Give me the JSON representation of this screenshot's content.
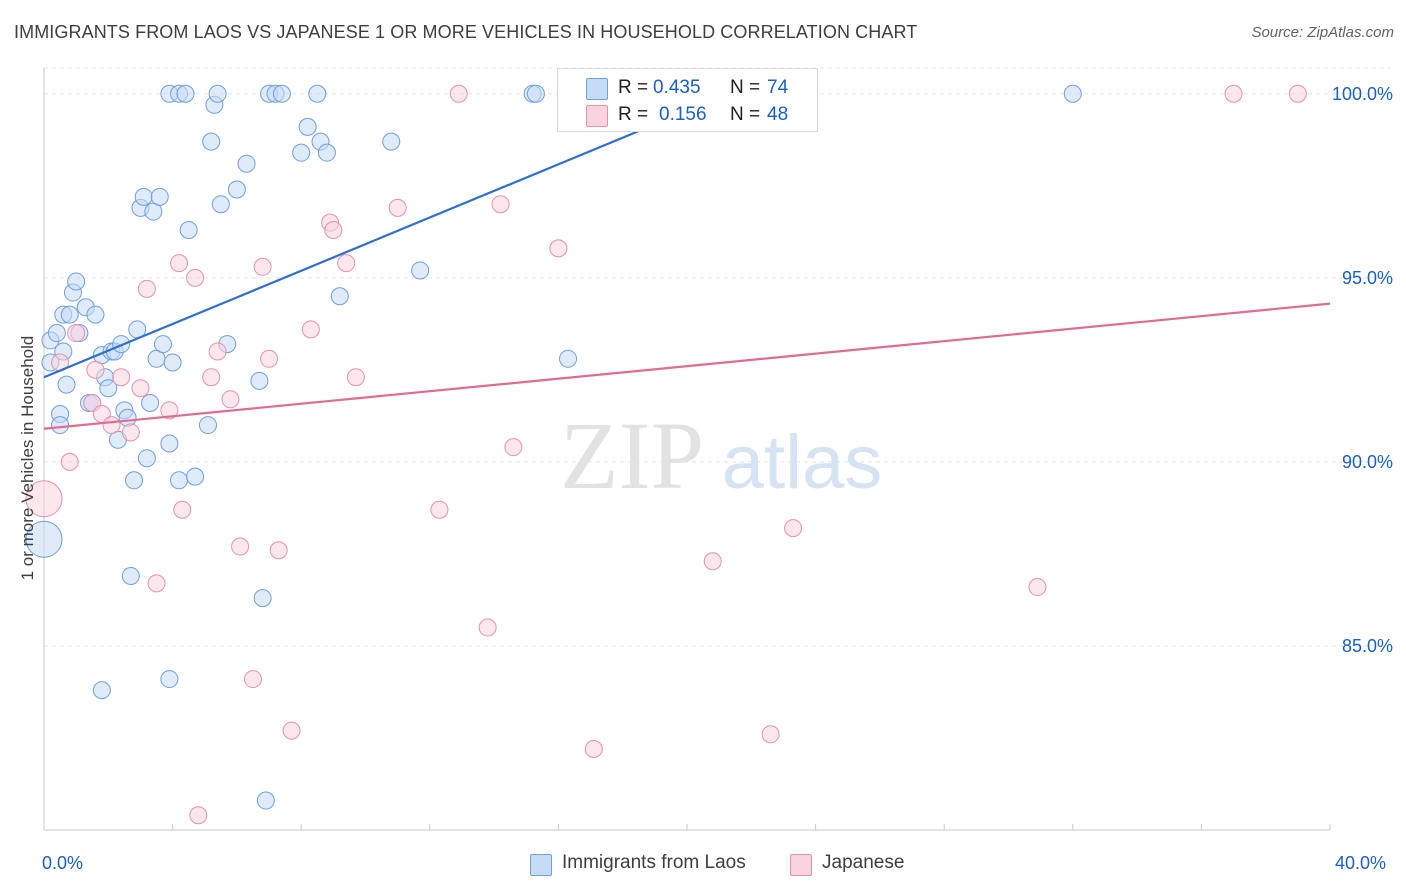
{
  "header": {
    "title": "IMMIGRANTS FROM LAOS VS JAPANESE 1 OR MORE VEHICLES IN HOUSEHOLD CORRELATION CHART",
    "source": "Source: ZipAtlas.com"
  },
  "watermark": {
    "zip": "ZIP",
    "atlas": "atlas"
  },
  "legend": {
    "r_label": "R =",
    "n_label": "N =",
    "series": [
      {
        "r": "0.435",
        "n": "74",
        "color": "#a8c8f0",
        "border": "#6fa0dc"
      },
      {
        "r": "0.156",
        "n": "48",
        "color": "#f7bfd0",
        "border": "#e691ad"
      }
    ]
  },
  "bottom_legend": [
    {
      "label": "Immigrants from Laos",
      "color": "#c6dbf6",
      "border": "#6fa0dc"
    },
    {
      "label": "Japanese",
      "color": "#f9d3df",
      "border": "#e691ad"
    }
  ],
  "chart_data": {
    "type": "scatter",
    "title": "IMMIGRANTS FROM LAOS VS JAPANESE 1 OR MORE VEHICLES IN HOUSEHOLD CORRELATION CHART",
    "xlabel": "",
    "ylabel": "1 or more Vehicles in Household",
    "xlim": [
      0,
      40
    ],
    "ylim": [
      80.0,
      100.7
    ],
    "x_tick_labels": [
      "0.0%",
      "40.0%"
    ],
    "y_ticks": [
      85,
      90,
      95,
      100
    ],
    "y_tick_labels": [
      "85.0%",
      "90.0%",
      "95.0%",
      "100.0%"
    ],
    "grid": true,
    "legend_position": "top-center",
    "series": [
      {
        "name": "Immigrants from Laos",
        "color": "#6fa0dc",
        "fill": "#c6dbf6",
        "line_color": "#2e6fd1",
        "trend": [
          [
            0,
            92.3
          ],
          [
            21.3,
            100.0
          ]
        ],
        "points": [
          [
            0.0,
            87.9,
            "big"
          ],
          [
            0.2,
            92.7
          ],
          [
            0.2,
            93.3
          ],
          [
            0.4,
            93.5
          ],
          [
            0.5,
            91.3
          ],
          [
            0.5,
            91.0
          ],
          [
            0.6,
            93.0
          ],
          [
            0.6,
            94.0
          ],
          [
            0.7,
            92.1
          ],
          [
            0.8,
            94.0
          ],
          [
            0.9,
            94.6
          ],
          [
            1.0,
            94.9
          ],
          [
            1.1,
            93.5
          ],
          [
            1.3,
            94.2
          ],
          [
            1.4,
            91.6
          ],
          [
            1.5,
            91.6
          ],
          [
            1.6,
            94.0
          ],
          [
            1.8,
            92.9
          ],
          [
            1.9,
            92.3
          ],
          [
            2.0,
            92.0
          ],
          [
            2.1,
            93.0
          ],
          [
            2.2,
            93.0
          ],
          [
            2.3,
            90.6
          ],
          [
            2.4,
            93.2
          ],
          [
            2.5,
            91.4
          ],
          [
            2.6,
            91.2
          ],
          [
            2.7,
            86.9
          ],
          [
            2.8,
            89.5
          ],
          [
            2.9,
            93.6
          ],
          [
            3.0,
            96.9
          ],
          [
            3.1,
            97.2
          ],
          [
            3.2,
            90.1
          ],
          [
            3.3,
            91.6
          ],
          [
            3.4,
            96.8
          ],
          [
            3.5,
            92.8
          ],
          [
            3.6,
            97.2
          ],
          [
            3.7,
            93.2
          ],
          [
            3.9,
            90.5
          ],
          [
            4.0,
            92.7
          ],
          [
            4.2,
            89.5
          ],
          [
            4.5,
            96.3
          ],
          [
            4.7,
            89.6
          ],
          [
            5.1,
            91.0
          ],
          [
            5.2,
            98.7
          ],
          [
            5.3,
            99.7
          ],
          [
            5.5,
            97.0
          ],
          [
            5.7,
            93.2
          ],
          [
            6.0,
            97.4
          ],
          [
            6.3,
            98.1
          ],
          [
            6.8,
            86.3
          ],
          [
            6.9,
            80.8
          ],
          [
            6.7,
            92.2
          ],
          [
            3.9,
            84.1
          ],
          [
            1.8,
            83.8
          ],
          [
            3.9,
            100.0
          ],
          [
            4.2,
            100.0
          ],
          [
            4.4,
            100.0
          ],
          [
            5.4,
            100.0
          ],
          [
            7.0,
            100.0
          ],
          [
            7.2,
            100.0
          ],
          [
            7.4,
            100.0
          ],
          [
            8.0,
            98.4
          ],
          [
            8.2,
            99.1
          ],
          [
            8.6,
            98.7
          ],
          [
            8.8,
            98.4
          ],
          [
            8.5,
            100.0
          ],
          [
            9.2,
            94.5
          ],
          [
            10.8,
            98.7
          ],
          [
            11.7,
            95.2
          ],
          [
            15.2,
            100.0
          ],
          [
            16.3,
            92.8
          ],
          [
            17.2,
            100.0
          ],
          [
            32.0,
            100.0
          ],
          [
            15.3,
            100.0
          ]
        ]
      },
      {
        "name": "Japanese",
        "color": "#e691ad",
        "fill": "#f9d3df",
        "line_color": "#e06b94",
        "trend": [
          [
            0,
            90.9
          ],
          [
            40,
            94.3
          ]
        ],
        "points": [
          [
            0.0,
            89.0,
            "big"
          ],
          [
            0.5,
            92.7
          ],
          [
            0.8,
            90.0
          ],
          [
            1.0,
            93.5
          ],
          [
            1.5,
            91.6
          ],
          [
            1.6,
            92.5
          ],
          [
            1.8,
            91.3
          ],
          [
            2.1,
            91.0
          ],
          [
            2.4,
            92.3
          ],
          [
            2.7,
            90.8
          ],
          [
            3.0,
            92.0
          ],
          [
            3.2,
            94.7
          ],
          [
            3.5,
            86.7
          ],
          [
            3.9,
            91.4
          ],
          [
            4.2,
            95.4
          ],
          [
            4.3,
            88.7
          ],
          [
            4.7,
            95.0
          ],
          [
            4.8,
            80.4
          ],
          [
            5.2,
            92.3
          ],
          [
            5.4,
            93.0
          ],
          [
            5.8,
            91.7
          ],
          [
            6.1,
            87.7
          ],
          [
            6.5,
            84.1
          ],
          [
            6.8,
            95.3
          ],
          [
            7.0,
            92.8
          ],
          [
            7.3,
            87.6
          ],
          [
            7.7,
            82.7
          ],
          [
            8.3,
            93.6
          ],
          [
            8.9,
            96.5
          ],
          [
            9.0,
            96.3
          ],
          [
            9.4,
            95.4
          ],
          [
            9.7,
            92.3
          ],
          [
            11.0,
            96.9
          ],
          [
            12.3,
            88.7
          ],
          [
            12.9,
            100.0
          ],
          [
            13.8,
            85.5
          ],
          [
            14.2,
            97.0
          ],
          [
            14.6,
            90.4
          ],
          [
            16.0,
            95.8
          ],
          [
            16.3,
            100.0
          ],
          [
            17.1,
            82.2
          ],
          [
            20.8,
            87.3
          ],
          [
            22.6,
            82.6
          ],
          [
            23.3,
            88.2
          ],
          [
            30.9,
            86.6
          ],
          [
            37.0,
            100.0
          ],
          [
            39.0,
            100.0
          ],
          [
            16.5,
            100.0
          ]
        ]
      }
    ]
  }
}
